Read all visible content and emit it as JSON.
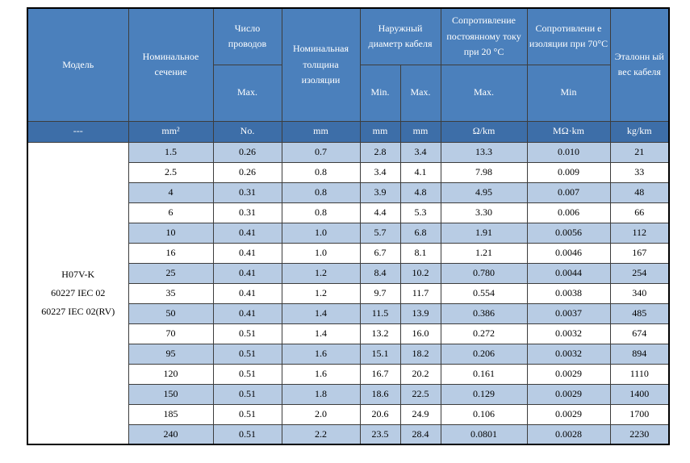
{
  "headers": {
    "model": "Модель",
    "cross_section": "Номинальное сечение",
    "wires": "Число проводов",
    "wires_max": "Max.",
    "insulation": "Номинальная толщина изоляции",
    "diameter": "Наружный диаметр кабеля",
    "diameter_min": "Min.",
    "diameter_max": "Max.",
    "dc_resistance": "Сопротивление постоянному току при 20 °C",
    "dc_resistance_sub": "Max.",
    "insulation_resistance": "Сопротивлени е изоляции при 70°C",
    "insulation_resistance_sub": "Min",
    "weight": "Эталонн ый вес кабеля"
  },
  "units": {
    "model": "---",
    "cross_section": "mm²",
    "wires": "No.",
    "insulation": "mm",
    "diameter_min": "mm",
    "diameter_max": "mm",
    "dc_resistance": "Ω/km",
    "insulation_resistance": "MΩ·km",
    "weight": "kg/km"
  },
  "model_lines": [
    "H07V-K",
    "60227 IEC 02",
    "60227 IEC 02(RV)"
  ],
  "rows": [
    [
      "1.5",
      "0.26",
      "0.7",
      "2.8",
      "3.4",
      "13.3",
      "0.010",
      "21"
    ],
    [
      "2.5",
      "0.26",
      "0.8",
      "3.4",
      "4.1",
      "7.98",
      "0.009",
      "33"
    ],
    [
      "4",
      "0.31",
      "0.8",
      "3.9",
      "4.8",
      "4.95",
      "0.007",
      "48"
    ],
    [
      "6",
      "0.31",
      "0.8",
      "4.4",
      "5.3",
      "3.30",
      "0.006",
      "66"
    ],
    [
      "10",
      "0.41",
      "1.0",
      "5.7",
      "6.8",
      "1.91",
      "0.0056",
      "112"
    ],
    [
      "16",
      "0.41",
      "1.0",
      "6.7",
      "8.1",
      "1.21",
      "0.0046",
      "167"
    ],
    [
      "25",
      "0.41",
      "1.2",
      "8.4",
      "10.2",
      "0.780",
      "0.0044",
      "254"
    ],
    [
      "35",
      "0.41",
      "1.2",
      "9.7",
      "11.7",
      "0.554",
      "0.0038",
      "340"
    ],
    [
      "50",
      "0.41",
      "1.4",
      "11.5",
      "13.9",
      "0.386",
      "0.0037",
      "485"
    ],
    [
      "70",
      "0.51",
      "1.4",
      "13.2",
      "16.0",
      "0.272",
      "0.0032",
      "674"
    ],
    [
      "95",
      "0.51",
      "1.6",
      "15.1",
      "18.2",
      "0.206",
      "0.0032",
      "894"
    ],
    [
      "120",
      "0.51",
      "1.6",
      "16.7",
      "20.2",
      "0.161",
      "0.0029",
      "1110"
    ],
    [
      "150",
      "0.51",
      "1.8",
      "18.6",
      "22.5",
      "0.129",
      "0.0029",
      "1400"
    ],
    [
      "185",
      "0.51",
      "2.0",
      "20.6",
      "24.9",
      "0.106",
      "0.0029",
      "1700"
    ],
    [
      "240",
      "0.51",
      "2.2",
      "23.5",
      "28.4",
      "0.0801",
      "0.0028",
      "2230"
    ]
  ],
  "colors": {
    "header_bg": "#4b80bc",
    "units_bg": "#3d6ea8",
    "stripe_bg": "#b8cce4"
  }
}
